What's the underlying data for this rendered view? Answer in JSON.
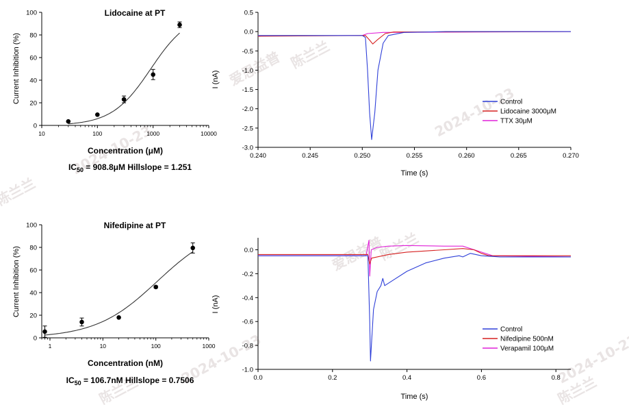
{
  "watermark": {
    "name": "陈兰兰",
    "org": "爱思益普",
    "date": "2024-10-23"
  },
  "chart_data": [
    {
      "id": "lidocaine_dose",
      "type": "scatter",
      "title": "Lidocaine at PT",
      "xlabel": "Concentration (μM)",
      "ylabel": "Current Inhibition (%)",
      "xscale": "log",
      "xlim": [
        10,
        10000
      ],
      "ylim": [
        0,
        100
      ],
      "xticks": [
        {
          "v": 10,
          "t": "10"
        },
        {
          "v": 100,
          "t": "100"
        },
        {
          "v": 1000,
          "t": "1000"
        },
        {
          "v": 10000,
          "t": "10000"
        }
      ],
      "yticks": [
        0,
        20,
        40,
        60,
        80,
        100
      ],
      "points": [
        {
          "x": 30,
          "y": 3.5,
          "err": 0
        },
        {
          "x": 100,
          "y": 9.5,
          "err": 0
        },
        {
          "x": 300,
          "y": 23,
          "err": 3
        },
        {
          "x": 1000,
          "y": 45,
          "err": 4.5
        },
        {
          "x": 3000,
          "y": 89,
          "err": 2.5
        }
      ],
      "fit": {
        "ic50": 908.8,
        "hill": 1.251,
        "bottom": 0,
        "top": 100,
        "xrange": [
          30,
          3000
        ]
      },
      "result": {
        "ic": "IC",
        "sub": "50",
        "text": " = 908.8μM   Hillslope = 1.251"
      }
    },
    {
      "id": "lidocaine_trace",
      "type": "line",
      "xlabel": "Time (s)",
      "ylabel": "I (nA)",
      "xlim": [
        0.24,
        0.27
      ],
      "ylim": [
        -3.0,
        0.5
      ],
      "xticks": [
        {
          "v": 0.24,
          "t": "0.240"
        },
        {
          "v": 0.245,
          "t": "0.245"
        },
        {
          "v": 0.25,
          "t": "0.250"
        },
        {
          "v": 0.255,
          "t": "0.255"
        },
        {
          "v": 0.26,
          "t": "0.260"
        },
        {
          "v": 0.265,
          "t": "0.265"
        },
        {
          "v": 0.27,
          "t": "0.270"
        }
      ],
      "yticks": [
        {
          "v": 0.5,
          "t": "0.5"
        },
        {
          "v": 0.0,
          "t": "0.0"
        },
        {
          "v": -0.5,
          "t": "-0.5"
        },
        {
          "v": -1.0,
          "t": "-1.0"
        },
        {
          "v": -1.5,
          "t": "-1.5"
        },
        {
          "v": -2.0,
          "t": "-2.0"
        },
        {
          "v": -2.5,
          "t": "-2.5"
        },
        {
          "v": -3.0,
          "t": "-3.0"
        }
      ],
      "series": [
        {
          "name": "Control",
          "color": "#2e3fd8",
          "points": [
            [
              0.24,
              -0.1
            ],
            [
              0.25,
              -0.1
            ],
            [
              0.2503,
              -0.15
            ],
            [
              0.2505,
              -1.0
            ],
            [
              0.2507,
              -2.1
            ],
            [
              0.2509,
              -2.8
            ],
            [
              0.2512,
              -2.1
            ],
            [
              0.2515,
              -1.0
            ],
            [
              0.252,
              -0.3
            ],
            [
              0.2525,
              -0.1
            ],
            [
              0.254,
              -0.02
            ],
            [
              0.258,
              0.0
            ],
            [
              0.27,
              0.0
            ]
          ]
        },
        {
          "name": "Lidocaine 3000μM",
          "color": "#d62020",
          "points": [
            [
              0.24,
              -0.12
            ],
            [
              0.2503,
              -0.1
            ],
            [
              0.2507,
              -0.22
            ],
            [
              0.251,
              -0.32
            ],
            [
              0.2515,
              -0.2
            ],
            [
              0.2522,
              -0.05
            ],
            [
              0.253,
              -0.01
            ],
            [
              0.27,
              0.0
            ]
          ]
        },
        {
          "name": "TTX 30μM",
          "color": "#e020d8",
          "points": [
            [
              0.24,
              -0.11
            ],
            [
              0.25,
              -0.1
            ],
            [
              0.2505,
              -0.05
            ],
            [
              0.252,
              -0.02
            ],
            [
              0.27,
              0.0
            ]
          ]
        }
      ]
    },
    {
      "id": "nifedipine_dose",
      "type": "scatter",
      "title": "Nifedipine at PT",
      "xlabel": "Concentration (nM)",
      "ylabel": "Current Inhibition (%)",
      "xscale": "log",
      "xlim": [
        0.7,
        1000
      ],
      "ylim": [
        0,
        100
      ],
      "xticks": [
        {
          "v": 1,
          "t": "1"
        },
        {
          "v": 10,
          "t": "10"
        },
        {
          "v": 100,
          "t": "100"
        },
        {
          "v": 1000,
          "t": "1000"
        }
      ],
      "yticks": [
        0,
        20,
        40,
        60,
        80,
        100
      ],
      "points": [
        {
          "x": 0.8,
          "y": 5.5,
          "err": 5
        },
        {
          "x": 4,
          "y": 14,
          "err": 3.5
        },
        {
          "x": 20,
          "y": 18,
          "err": 0
        },
        {
          "x": 100,
          "y": 45,
          "err": 1
        },
        {
          "x": 500,
          "y": 79.5,
          "err": 4.5
        }
      ],
      "fit": {
        "ic50": 106.7,
        "hill": 0.7506,
        "bottom": 0,
        "top": 100,
        "xrange": [
          0.8,
          500
        ]
      },
      "result": {
        "ic": "IC",
        "sub": "50",
        "text": " = 106.7nM   Hillslope = 0.7506"
      }
    },
    {
      "id": "nifedipine_trace",
      "type": "line",
      "xlabel": "Time (s)",
      "ylabel": "I (nA)",
      "xlim": [
        0.0,
        0.84
      ],
      "ylim": [
        -1.0,
        0.1
      ],
      "xticks": [
        {
          "v": 0.0,
          "t": "0.0"
        },
        {
          "v": 0.2,
          "t": "0.2"
        },
        {
          "v": 0.4,
          "t": "0.4"
        },
        {
          "v": 0.6,
          "t": "0.6"
        },
        {
          "v": 0.8,
          "t": "0.8"
        }
      ],
      "yticks": [
        {
          "v": 0.0,
          "t": "0.0"
        },
        {
          "v": -0.2,
          "t": "-0.2"
        },
        {
          "v": -0.4,
          "t": "-0.4"
        },
        {
          "v": -0.6,
          "t": "-0.6"
        },
        {
          "v": -0.8,
          "t": "-0.8"
        },
        {
          "v": -1.0,
          "t": "-1.0"
        }
      ],
      "series": [
        {
          "name": "Control",
          "color": "#2e3fd8",
          "points": [
            [
              0.0,
              -0.05
            ],
            [
              0.295,
              -0.05
            ],
            [
              0.3,
              -0.6
            ],
            [
              0.302,
              -0.93
            ],
            [
              0.31,
              -0.5
            ],
            [
              0.32,
              -0.35
            ],
            [
              0.33,
              -0.3
            ],
            [
              0.335,
              -0.24
            ],
            [
              0.34,
              -0.3
            ],
            [
              0.36,
              -0.26
            ],
            [
              0.4,
              -0.18
            ],
            [
              0.45,
              -0.11
            ],
            [
              0.5,
              -0.07
            ],
            [
              0.54,
              -0.05
            ],
            [
              0.55,
              -0.06
            ],
            [
              0.57,
              -0.03
            ],
            [
              0.6,
              -0.05
            ],
            [
              0.65,
              -0.06
            ],
            [
              0.84,
              -0.06
            ]
          ]
        },
        {
          "name": "Nifedipine 500nM",
          "color": "#d62020",
          "points": [
            [
              0.0,
              -0.04
            ],
            [
              0.295,
              -0.04
            ],
            [
              0.3,
              -0.12
            ],
            [
              0.305,
              -0.07
            ],
            [
              0.35,
              -0.04
            ],
            [
              0.4,
              -0.02
            ],
            [
              0.5,
              0.0
            ],
            [
              0.55,
              0.01
            ],
            [
              0.58,
              0.0
            ],
            [
              0.6,
              -0.03
            ],
            [
              0.62,
              -0.05
            ],
            [
              0.84,
              -0.05
            ]
          ]
        },
        {
          "name": "Verapamil 100μM",
          "color": "#e020d8",
          "points": [
            [
              0.0,
              -0.05
            ],
            [
              0.29,
              -0.05
            ],
            [
              0.298,
              0.08
            ],
            [
              0.3,
              -0.22
            ],
            [
              0.304,
              0.0
            ],
            [
              0.32,
              0.02
            ],
            [
              0.35,
              0.03
            ],
            [
              0.4,
              0.035
            ],
            [
              0.5,
              0.03
            ],
            [
              0.55,
              0.03
            ],
            [
              0.6,
              -0.02
            ],
            [
              0.63,
              -0.05
            ],
            [
              0.84,
              -0.06
            ]
          ]
        }
      ]
    }
  ]
}
